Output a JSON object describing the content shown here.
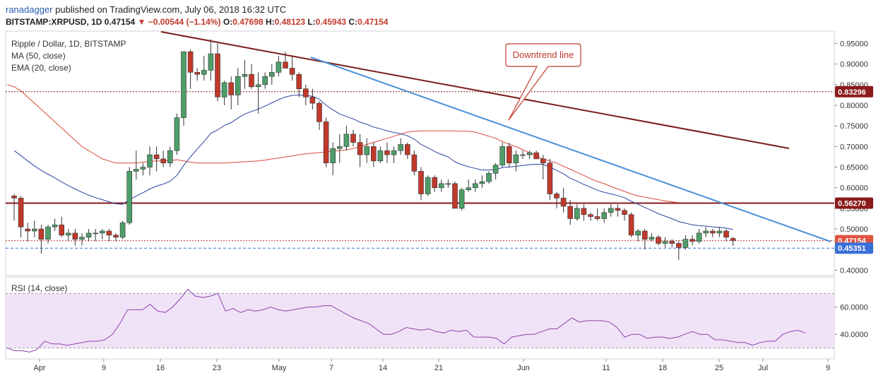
{
  "header": {
    "user": "ranadagger",
    "published_text": "published on TradingView.com, July 06, 2018 16:32 UTC",
    "symbol": "BITSTAMP:XRPUSD, 1D",
    "last": "0.47154",
    "change_arrow": "▼",
    "change": "−0.00544 (−1.14%)",
    "o_label": "O:",
    "o": "0.47698",
    "h_label": "H:",
    "h": "0.48123",
    "l_label": "L:",
    "l": "0.45943",
    "c_label": "C:",
    "c": "0.47154"
  },
  "legend": {
    "title": "Ripple / Dollar, 1D, BITSTAMP",
    "ma": "MA (50, close)",
    "ema": "EMA (20, close)"
  },
  "rsi_label": "RSI (14, close)",
  "annotation": "Downtrend line",
  "colors": {
    "up": "#4f9e6a",
    "down": "#c0392b",
    "ema": "#2b43a3",
    "ma": "#d84a3a",
    "trend_dark": "#7a1c1c",
    "trend_blue": "#4a90d9",
    "hline": "#8b1a1a",
    "rsi_line": "#8e44ad"
  },
  "chart_data": {
    "type": "candlestick",
    "x_ticks": [
      "Apr",
      "9",
      "16",
      "23",
      "May",
      "7",
      "14",
      "21",
      "Jun",
      "11",
      "18",
      "25",
      "Jul",
      "9"
    ],
    "y_ticks": [
      "0.40000",
      "0.45000",
      "0.50000",
      "0.55000",
      "0.60000",
      "0.65000",
      "0.70000",
      "0.75000",
      "0.80000",
      "0.85000",
      "0.90000",
      "0.95000"
    ],
    "price_labels": [
      {
        "value": 0.83296,
        "text": "0.83296"
      },
      {
        "value": 0.5627,
        "text": "0.56270"
      },
      {
        "value": 0.47154,
        "text": "0.47154"
      },
      {
        "value": 0.45351,
        "text": "0.45351"
      }
    ],
    "ohlc": [
      [
        0.58,
        0.585,
        0.52,
        0.575
      ],
      [
        0.575,
        0.58,
        0.48,
        0.505
      ],
      [
        0.5,
        0.515,
        0.47,
        0.495
      ],
      [
        0.495,
        0.52,
        0.48,
        0.5
      ],
      [
        0.5,
        0.51,
        0.44,
        0.475
      ],
      [
        0.475,
        0.51,
        0.465,
        0.505
      ],
      [
        0.505,
        0.525,
        0.495,
        0.51
      ],
      [
        0.51,
        0.53,
        0.48,
        0.485
      ],
      [
        0.485,
        0.5,
        0.47,
        0.49
      ],
      [
        0.49,
        0.5,
        0.46,
        0.475
      ],
      [
        0.475,
        0.49,
        0.46,
        0.48
      ],
      [
        0.48,
        0.5,
        0.47,
        0.49
      ],
      [
        0.49,
        0.5,
        0.47,
        0.49
      ],
      [
        0.49,
        0.5,
        0.475,
        0.495
      ],
      [
        0.495,
        0.5,
        0.47,
        0.485
      ],
      [
        0.485,
        0.49,
        0.47,
        0.48
      ],
      [
        0.48,
        0.52,
        0.475,
        0.515
      ],
      [
        0.515,
        0.65,
        0.51,
        0.64
      ],
      [
        0.64,
        0.69,
        0.62,
        0.645
      ],
      [
        0.645,
        0.66,
        0.63,
        0.65
      ],
      [
        0.65,
        0.7,
        0.63,
        0.68
      ],
      [
        0.68,
        0.7,
        0.64,
        0.67
      ],
      [
        0.67,
        0.69,
        0.65,
        0.66
      ],
      [
        0.66,
        0.7,
        0.65,
        0.69
      ],
      [
        0.69,
        0.78,
        0.68,
        0.77
      ],
      [
        0.77,
        0.93,
        0.75,
        0.93
      ],
      [
        0.93,
        0.935,
        0.84,
        0.88
      ],
      [
        0.88,
        0.89,
        0.86,
        0.875
      ],
      [
        0.875,
        0.92,
        0.86,
        0.885
      ],
      [
        0.885,
        0.96,
        0.86,
        0.925
      ],
      [
        0.925,
        0.95,
        0.81,
        0.82
      ],
      [
        0.82,
        0.86,
        0.8,
        0.855
      ],
      [
        0.855,
        0.87,
        0.79,
        0.825
      ],
      [
        0.825,
        0.89,
        0.8,
        0.87
      ],
      [
        0.87,
        0.91,
        0.84,
        0.875
      ],
      [
        0.875,
        0.9,
        0.84,
        0.845
      ],
      [
        0.845,
        0.88,
        0.78,
        0.85
      ],
      [
        0.85,
        0.88,
        0.84,
        0.87
      ],
      [
        0.87,
        0.9,
        0.85,
        0.88
      ],
      [
        0.88,
        0.92,
        0.87,
        0.905
      ],
      [
        0.905,
        0.93,
        0.89,
        0.89
      ],
      [
        0.89,
        0.92,
        0.86,
        0.875
      ],
      [
        0.875,
        0.88,
        0.82,
        0.84
      ],
      [
        0.84,
        0.85,
        0.8,
        0.82
      ],
      [
        0.82,
        0.84,
        0.79,
        0.805
      ],
      [
        0.805,
        0.81,
        0.74,
        0.76
      ],
      [
        0.76,
        0.77,
        0.65,
        0.66
      ],
      [
        0.66,
        0.71,
        0.63,
        0.695
      ],
      [
        0.695,
        0.73,
        0.66,
        0.7
      ],
      [
        0.7,
        0.75,
        0.69,
        0.73
      ],
      [
        0.73,
        0.74,
        0.7,
        0.71
      ],
      [
        0.71,
        0.73,
        0.65,
        0.68
      ],
      [
        0.68,
        0.72,
        0.66,
        0.7
      ],
      [
        0.7,
        0.71,
        0.65,
        0.665
      ],
      [
        0.665,
        0.7,
        0.66,
        0.69
      ],
      [
        0.69,
        0.71,
        0.66,
        0.68
      ],
      [
        0.68,
        0.7,
        0.66,
        0.69
      ],
      [
        0.69,
        0.72,
        0.68,
        0.705
      ],
      [
        0.705,
        0.71,
        0.67,
        0.68
      ],
      [
        0.68,
        0.69,
        0.63,
        0.64
      ],
      [
        0.64,
        0.65,
        0.57,
        0.585
      ],
      [
        0.585,
        0.63,
        0.58,
        0.625
      ],
      [
        0.625,
        0.63,
        0.59,
        0.6
      ],
      [
        0.6,
        0.62,
        0.59,
        0.61
      ],
      [
        0.61,
        0.62,
        0.6,
        0.61
      ],
      [
        0.61,
        0.615,
        0.55,
        0.55
      ],
      [
        0.55,
        0.6,
        0.545,
        0.595
      ],
      [
        0.595,
        0.62,
        0.59,
        0.6
      ],
      [
        0.6,
        0.62,
        0.59,
        0.61
      ],
      [
        0.61,
        0.63,
        0.6,
        0.615
      ],
      [
        0.615,
        0.64,
        0.61,
        0.635
      ],
      [
        0.635,
        0.66,
        0.62,
        0.655
      ],
      [
        0.655,
        0.71,
        0.65,
        0.7
      ],
      [
        0.7,
        0.71,
        0.65,
        0.66
      ],
      [
        0.66,
        0.69,
        0.64,
        0.68
      ],
      [
        0.68,
        0.69,
        0.67,
        0.68
      ],
      [
        0.68,
        0.69,
        0.67,
        0.685
      ],
      [
        0.685,
        0.69,
        0.67,
        0.67
      ],
      [
        0.67,
        0.68,
        0.62,
        0.66
      ],
      [
        0.66,
        0.67,
        0.57,
        0.585
      ],
      [
        0.585,
        0.59,
        0.55,
        0.575
      ],
      [
        0.575,
        0.6,
        0.54,
        0.555
      ],
      [
        0.555,
        0.57,
        0.51,
        0.525
      ],
      [
        0.525,
        0.56,
        0.52,
        0.55
      ],
      [
        0.55,
        0.56,
        0.52,
        0.535
      ],
      [
        0.535,
        0.54,
        0.52,
        0.53
      ],
      [
        0.53,
        0.55,
        0.52,
        0.525
      ],
      [
        0.525,
        0.55,
        0.515,
        0.54
      ],
      [
        0.54,
        0.56,
        0.53,
        0.55
      ],
      [
        0.55,
        0.56,
        0.53,
        0.545
      ],
      [
        0.545,
        0.55,
        0.52,
        0.535
      ],
      [
        0.535,
        0.54,
        0.48,
        0.485
      ],
      [
        0.485,
        0.5,
        0.47,
        0.495
      ],
      [
        0.495,
        0.5,
        0.45,
        0.475
      ],
      [
        0.475,
        0.49,
        0.47,
        0.48
      ],
      [
        0.48,
        0.485,
        0.46,
        0.465
      ],
      [
        0.465,
        0.48,
        0.455,
        0.47
      ],
      [
        0.47,
        0.475,
        0.455,
        0.465
      ],
      [
        0.465,
        0.47,
        0.425,
        0.455
      ],
      [
        0.455,
        0.485,
        0.45,
        0.475
      ],
      [
        0.475,
        0.485,
        0.46,
        0.47
      ],
      [
        0.47,
        0.5,
        0.465,
        0.49
      ],
      [
        0.49,
        0.505,
        0.48,
        0.495
      ],
      [
        0.495,
        0.5,
        0.48,
        0.49
      ],
      [
        0.49,
        0.505,
        0.48,
        0.495
      ],
      [
        0.495,
        0.5,
        0.47,
        0.48
      ],
      [
        0.477,
        0.481,
        0.459,
        0.472
      ]
    ],
    "ema20": [
      0.69,
      0.678,
      0.665,
      0.653,
      0.642,
      0.633,
      0.624,
      0.614,
      0.605,
      0.597,
      0.589,
      0.582,
      0.576,
      0.571,
      0.566,
      0.561,
      0.56,
      0.571,
      0.58,
      0.588,
      0.597,
      0.604,
      0.609,
      0.616,
      0.63,
      0.654,
      0.675,
      0.694,
      0.712,
      0.732,
      0.74,
      0.751,
      0.758,
      0.769,
      0.779,
      0.785,
      0.791,
      0.798,
      0.806,
      0.814,
      0.82,
      0.824,
      0.825,
      0.824,
      0.822,
      0.815,
      0.8,
      0.789,
      0.779,
      0.773,
      0.767,
      0.759,
      0.754,
      0.747,
      0.743,
      0.738,
      0.734,
      0.731,
      0.726,
      0.718,
      0.705,
      0.697,
      0.688,
      0.681,
      0.675,
      0.663,
      0.656,
      0.651,
      0.647,
      0.643,
      0.643,
      0.644,
      0.649,
      0.65,
      0.652,
      0.654,
      0.656,
      0.657,
      0.657,
      0.65,
      0.642,
      0.634,
      0.623,
      0.616,
      0.608,
      0.601,
      0.594,
      0.589,
      0.585,
      0.581,
      0.576,
      0.567,
      0.56,
      0.552,
      0.545,
      0.537,
      0.531,
      0.525,
      0.518,
      0.514,
      0.51,
      0.508,
      0.507,
      0.505,
      0.504,
      0.502,
      0.499
    ],
    "ma50": [
      0.85,
      0.845,
      0.835,
      0.82,
      0.805,
      0.79,
      0.775,
      0.76,
      0.745,
      0.73,
      0.715,
      0.7,
      0.69,
      0.68,
      0.67,
      0.665,
      0.66,
      0.66,
      0.66,
      0.66,
      0.662,
      0.664,
      0.665,
      0.665,
      0.666,
      0.668,
      0.665,
      0.662,
      0.66,
      0.66,
      0.66,
      0.66,
      0.66,
      0.661,
      0.662,
      0.663,
      0.664,
      0.665,
      0.667,
      0.67,
      0.672,
      0.675,
      0.677,
      0.68,
      0.682,
      0.684,
      0.685,
      0.687,
      0.689,
      0.69,
      0.692,
      0.695,
      0.7,
      0.705,
      0.71,
      0.715,
      0.72,
      0.725,
      0.73,
      0.735,
      0.737,
      0.738,
      0.738,
      0.738,
      0.738,
      0.738,
      0.738,
      0.737,
      0.737,
      0.735,
      0.73,
      0.725,
      0.72,
      0.712,
      0.705,
      0.7,
      0.692,
      0.685,
      0.677,
      0.67,
      0.665,
      0.66,
      0.652,
      0.645,
      0.637,
      0.63,
      0.622,
      0.615,
      0.61,
      0.603,
      0.597,
      0.591,
      0.585,
      0.58,
      0.577,
      0.574,
      0.571,
      0.568,
      0.566,
      0.564
    ],
    "rsi": [
      30,
      28,
      28,
      27,
      29,
      35,
      33,
      33,
      32,
      33,
      34,
      35,
      35,
      36,
      40,
      48,
      58,
      58,
      58,
      62,
      57,
      56,
      60,
      66,
      73,
      68,
      67,
      68,
      70,
      57,
      59,
      56,
      58,
      57,
      58,
      60,
      58,
      57,
      58,
      59,
      60,
      60,
      61,
      61,
      58,
      55,
      52,
      50,
      48,
      44,
      40,
      40,
      42,
      45,
      44,
      43,
      44,
      42,
      41,
      43,
      42,
      43,
      38,
      38,
      38,
      37,
      33,
      38,
      39,
      40,
      40,
      42,
      44,
      44,
      48,
      52,
      49,
      50,
      50,
      50,
      49,
      45,
      38,
      40,
      40,
      37,
      38,
      38,
      37,
      38,
      40,
      42,
      40,
      40,
      36,
      36,
      35,
      34,
      34,
      32,
      34,
      35,
      35,
      40,
      42,
      43,
      41
    ],
    "rsi_ticks": [
      "40.0000",
      "60.0000"
    ]
  }
}
